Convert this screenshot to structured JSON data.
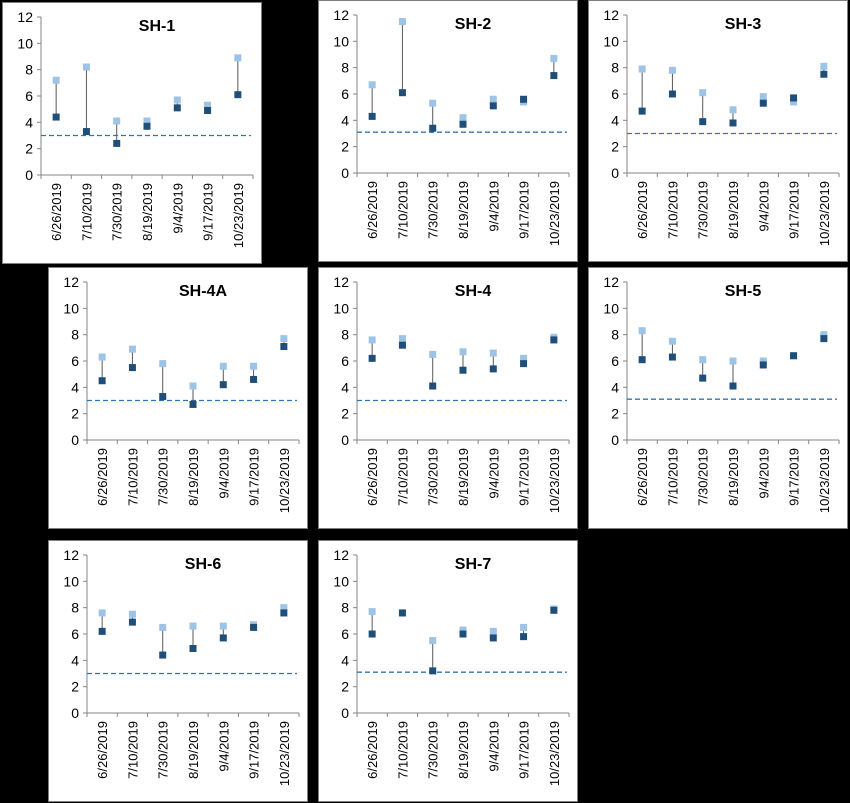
{
  "page": {
    "background": "#000000"
  },
  "colors": {
    "before": "#9dc3e6",
    "after": "#1f4e79",
    "connector": "#595959",
    "threshold": "#2e75b6"
  },
  "chart_data": [
    {
      "type": "scatter",
      "title": "SH-1",
      "categories": [
        "6/26/2019",
        "7/10/2019",
        "7/30/2019",
        "8/19/2019",
        "9/4/2019",
        "9/17/2019",
        "10/23/2019"
      ],
      "series": [
        {
          "values": [
            7.2,
            8.2,
            4.1,
            4.1,
            5.7,
            5.3,
            8.9
          ]
        },
        {
          "values": [
            4.4,
            3.3,
            2.4,
            3.7,
            5.1,
            4.9,
            6.1
          ]
        }
      ],
      "threshold": 3,
      "ylim": [
        0,
        12
      ],
      "yticks": [
        0,
        2,
        4,
        6,
        8,
        10,
        12
      ]
    },
    {
      "type": "scatter",
      "title": "SH-2",
      "categories": [
        "6/26/2019",
        "7/10/2019",
        "7/30/2019",
        "8/19/2019",
        "9/4/2019",
        "9/17/2019",
        "10/23/2019"
      ],
      "series": [
        {
          "values": [
            6.7,
            11.5,
            5.3,
            4.2,
            5.6,
            5.4,
            8.7
          ]
        },
        {
          "values": [
            4.3,
            6.1,
            3.4,
            3.7,
            5.1,
            5.6,
            7.4
          ]
        }
      ],
      "threshold": 3.1,
      "ylim": [
        0,
        12
      ],
      "yticks": [
        0,
        2,
        4,
        6,
        8,
        10,
        12
      ]
    },
    {
      "type": "scatter",
      "title": "SH-3",
      "categories": [
        "6/26/2019",
        "7/10/2019",
        "7/30/2019",
        "8/19/2019",
        "9/4/2019",
        "9/17/2019",
        "10/23/2019"
      ],
      "series": [
        {
          "values": [
            7.9,
            7.8,
            6.1,
            4.8,
            5.8,
            5.4,
            8.1
          ]
        },
        {
          "values": [
            4.7,
            6.0,
            3.9,
            3.8,
            5.3,
            5.7,
            7.5
          ]
        }
      ],
      "threshold": 3,
      "ylim": [
        0,
        12
      ],
      "yticks": [
        0,
        2,
        4,
        6,
        8,
        10,
        12
      ]
    },
    {
      "type": "scatter",
      "title": "SH-4A",
      "categories": [
        "6/26/2019",
        "7/10/2019",
        "7/30/2019",
        "8/19/2019",
        "9/4/2019",
        "9/17/2019",
        "10/23/2019"
      ],
      "series": [
        {
          "values": [
            6.3,
            6.9,
            5.8,
            4.1,
            5.6,
            5.6,
            7.7
          ]
        },
        {
          "values": [
            4.5,
            5.5,
            3.3,
            2.7,
            4.2,
            4.6,
            7.1
          ]
        }
      ],
      "threshold": 3,
      "ylim": [
        0,
        12
      ],
      "yticks": [
        0,
        2,
        4,
        6,
        8,
        10,
        12
      ]
    },
    {
      "type": "scatter",
      "title": "SH-4",
      "categories": [
        "6/26/2019",
        "7/10/2019",
        "7/30/2019",
        "8/19/2019",
        "9/4/2019",
        "9/17/2019",
        "10/23/2019"
      ],
      "series": [
        {
          "values": [
            7.6,
            7.7,
            6.5,
            6.7,
            6.6,
            6.2,
            7.8
          ]
        },
        {
          "values": [
            6.2,
            7.2,
            4.1,
            5.3,
            5.4,
            5.8,
            7.6
          ]
        }
      ],
      "threshold": 3,
      "ylim": [
        0,
        12
      ],
      "yticks": [
        0,
        2,
        4,
        6,
        8,
        10,
        12
      ]
    },
    {
      "type": "scatter",
      "title": "SH-5",
      "categories": [
        "6/26/2019",
        "7/10/2019",
        "7/30/2019",
        "8/19/2019",
        "9/4/2019",
        "9/17/2019",
        "10/23/2019"
      ],
      "series": [
        {
          "values": [
            8.3,
            7.5,
            6.1,
            6.0,
            6.0,
            6.4,
            8.0
          ]
        },
        {
          "values": [
            6.1,
            6.3,
            4.7,
            4.1,
            5.7,
            6.4,
            7.7
          ]
        }
      ],
      "threshold": 3.1,
      "ylim": [
        0,
        12
      ],
      "yticks": [
        0,
        2,
        4,
        6,
        8,
        10,
        12
      ]
    },
    {
      "type": "scatter",
      "title": "SH-6",
      "categories": [
        "6/26/2019",
        "7/10/2019",
        "7/30/2019",
        "8/19/2019",
        "9/4/2019",
        "9/17/2019",
        "10/23/2019"
      ],
      "series": [
        {
          "values": [
            7.6,
            7.5,
            6.5,
            6.6,
            6.6,
            6.7,
            8.0
          ]
        },
        {
          "values": [
            6.2,
            6.9,
            4.4,
            4.9,
            5.7,
            6.5,
            7.6
          ]
        }
      ],
      "threshold": 3,
      "ylim": [
        0,
        12
      ],
      "yticks": [
        0,
        2,
        4,
        6,
        8,
        10,
        12
      ]
    },
    {
      "type": "scatter",
      "title": "SH-7",
      "categories": [
        "6/26/2019",
        "7/10/2019",
        "7/30/2019",
        "8/19/2019",
        "9/4/2019",
        "9/17/2019",
        "10/23/2019"
      ],
      "series": [
        {
          "values": [
            7.7,
            7.6,
            5.5,
            6.3,
            6.2,
            6.5,
            7.9
          ]
        },
        {
          "values": [
            6.0,
            7.6,
            3.2,
            6.0,
            5.7,
            5.8,
            7.8
          ]
        }
      ],
      "threshold": 3.1,
      "ylim": [
        0,
        12
      ],
      "yticks": [
        0,
        2,
        4,
        6,
        8,
        10,
        12
      ]
    }
  ]
}
